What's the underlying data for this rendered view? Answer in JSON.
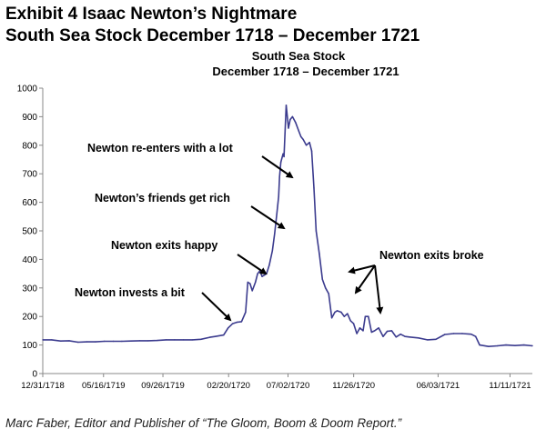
{
  "header": {
    "title_line1": "Exhibit 4  Isaac Newton’s Nightmare",
    "title_line2": "South Sea Stock December 1718 – December 1721"
  },
  "footer": {
    "credit": "Marc Faber, Editor and Publisher of “The Gloom, Boom & Doom Report.”"
  },
  "chart_data": {
    "type": "line",
    "title": "South Sea Stock",
    "subtitle": "December 1718 – December 1721",
    "xlabel": "",
    "ylabel": "",
    "ylim": [
      0,
      1000
    ],
    "yticks": [
      0,
      100,
      200,
      300,
      400,
      500,
      600,
      700,
      800,
      900,
      1000
    ],
    "xlim": [
      "1718-12-31",
      "1721-12-31"
    ],
    "xticks": [
      {
        "date": "1718-12-31",
        "label": "12/31/1718"
      },
      {
        "date": "1719-05-16",
        "label": "05/16/1719"
      },
      {
        "date": "1719-09-26",
        "label": "09/26/1719"
      },
      {
        "date": "1720-02-20",
        "label": "02/20/1720"
      },
      {
        "date": "1720-07-02",
        "label": "07/02/1720"
      },
      {
        "date": "1720-11-26",
        "label": "11/26/1720"
      },
      {
        "date": "1721-06-03",
        "label": "06/03/1721"
      },
      {
        "date": "1721-11-11",
        "label": "11/11/1721"
      }
    ],
    "grid": false,
    "series": [
      {
        "color": "#3b3b8e",
        "points": [
          [
            "1718-12-31",
            118
          ],
          [
            "1719-01-20",
            118
          ],
          [
            "1719-02-09",
            114
          ],
          [
            "1719-02-28",
            115
          ],
          [
            "1719-03-20",
            110
          ],
          [
            "1719-04-09",
            111
          ],
          [
            "1719-04-28",
            111
          ],
          [
            "1719-05-18",
            113
          ],
          [
            "1719-06-07",
            113
          ],
          [
            "1719-06-26",
            113
          ],
          [
            "1719-07-16",
            114
          ],
          [
            "1719-08-05",
            115
          ],
          [
            "1719-08-24",
            115
          ],
          [
            "1719-09-13",
            116
          ],
          [
            "1719-10-03",
            118
          ],
          [
            "1719-10-22",
            118
          ],
          [
            "1719-11-11",
            118
          ],
          [
            "1719-12-01",
            118
          ],
          [
            "1719-12-20",
            120
          ],
          [
            "1720-01-09",
            127
          ],
          [
            "1720-01-21",
            130
          ],
          [
            "1720-02-09",
            135
          ],
          [
            "1720-02-19",
            160
          ],
          [
            "1720-02-29",
            175
          ],
          [
            "1720-03-10",
            180
          ],
          [
            "1720-03-20",
            182
          ],
          [
            "1720-03-29",
            215
          ],
          [
            "1720-04-03",
            320
          ],
          [
            "1720-04-08",
            315
          ],
          [
            "1720-04-13",
            290
          ],
          [
            "1720-04-20",
            320
          ],
          [
            "1720-04-25",
            350
          ],
          [
            "1720-04-30",
            360
          ],
          [
            "1720-05-05",
            340
          ],
          [
            "1720-05-10",
            345
          ],
          [
            "1720-05-15",
            350
          ],
          [
            "1720-05-21",
            380
          ],
          [
            "1720-05-28",
            430
          ],
          [
            "1720-06-02",
            490
          ],
          [
            "1720-06-07",
            560
          ],
          [
            "1720-06-11",
            620
          ],
          [
            "1720-06-13",
            690
          ],
          [
            "1720-06-16",
            740
          ],
          [
            "1720-06-21",
            770
          ],
          [
            "1720-06-23",
            760
          ],
          [
            "1720-06-28",
            940
          ],
          [
            "1720-07-03",
            860
          ],
          [
            "1720-07-07",
            890
          ],
          [
            "1720-07-12",
            900
          ],
          [
            "1720-07-19",
            880
          ],
          [
            "1720-07-26",
            850
          ],
          [
            "1720-07-31",
            830
          ],
          [
            "1720-08-05",
            820
          ],
          [
            "1720-08-12",
            800
          ],
          [
            "1720-08-19",
            810
          ],
          [
            "1720-08-24",
            780
          ],
          [
            "1720-08-29",
            650
          ],
          [
            "1720-09-03",
            500
          ],
          [
            "1720-09-10",
            420
          ],
          [
            "1720-09-17",
            330
          ],
          [
            "1720-09-24",
            300
          ],
          [
            "1720-10-01",
            280
          ],
          [
            "1720-10-08",
            195
          ],
          [
            "1720-10-15",
            215
          ],
          [
            "1720-10-20",
            220
          ],
          [
            "1720-10-29",
            215
          ],
          [
            "1720-11-05",
            200
          ],
          [
            "1720-11-12",
            210
          ],
          [
            "1720-11-19",
            185
          ],
          [
            "1720-11-26",
            175
          ],
          [
            "1720-12-03",
            140
          ],
          [
            "1720-12-10",
            160
          ],
          [
            "1720-12-17",
            150
          ],
          [
            "1720-12-22",
            200
          ],
          [
            "1720-12-29",
            200
          ],
          [
            "1721-01-05",
            145
          ],
          [
            "1721-01-12",
            150
          ],
          [
            "1721-01-21",
            160
          ],
          [
            "1721-01-31",
            130
          ],
          [
            "1721-02-09",
            148
          ],
          [
            "1721-02-19",
            150
          ],
          [
            "1721-03-01",
            128
          ],
          [
            "1721-03-11",
            138
          ],
          [
            "1721-03-21",
            130
          ],
          [
            "1721-03-31",
            128
          ],
          [
            "1721-04-20",
            125
          ],
          [
            "1721-05-10",
            118
          ],
          [
            "1721-05-29",
            120
          ],
          [
            "1721-06-18",
            137
          ],
          [
            "1721-07-08",
            140
          ],
          [
            "1721-07-27",
            140
          ],
          [
            "1721-08-16",
            138
          ],
          [
            "1721-08-26",
            130
          ],
          [
            "1721-09-04",
            100
          ],
          [
            "1721-09-24",
            95
          ],
          [
            "1721-10-14",
            97
          ],
          [
            "1721-11-02",
            100
          ],
          [
            "1721-11-22",
            98
          ],
          [
            "1721-12-12",
            100
          ],
          [
            "1721-12-31",
            97
          ]
        ]
      }
    ],
    "annotations": [
      {
        "text": "Newton invests a bit"
      },
      {
        "text": "Newton exits happy"
      },
      {
        "text": "Newton’s friends get rich"
      },
      {
        "text": "Newton re-enters with a lot"
      },
      {
        "text": "Newton exits broke"
      }
    ]
  }
}
